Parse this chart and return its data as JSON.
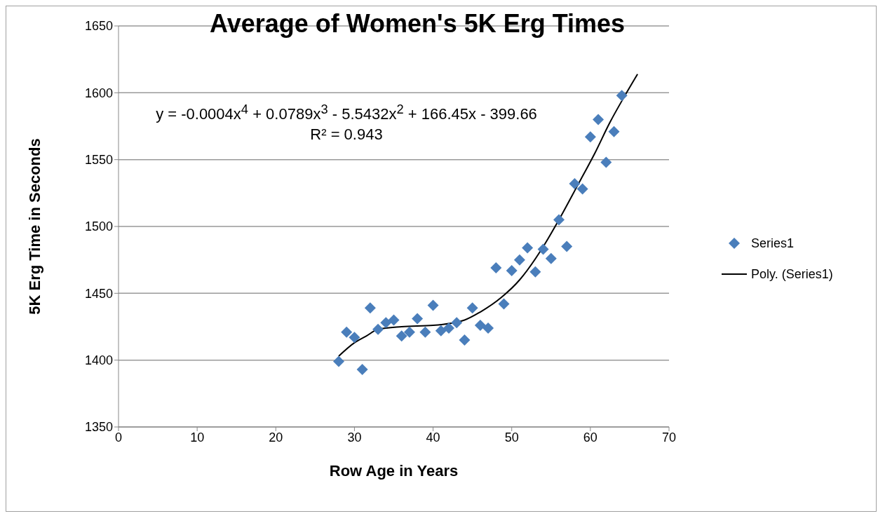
{
  "chart_data": {
    "type": "scatter",
    "title": "Average of Women's 5K Erg Times",
    "xlabel": "Row Age in Years",
    "ylabel": "5K Erg Time in Seconds",
    "annotations": [
      "y = -0.0004x$^{4}$ + 0.0789x$^{3}$ - 5.5432x$^{2}$ + 166.45x - 399.66",
      "R² = 0.943"
    ],
    "xlim": [
      0,
      70
    ],
    "xticks": [
      0,
      10,
      20,
      30,
      40,
      50,
      60,
      70
    ],
    "ylim": [
      1350,
      1650
    ],
    "yticks": [
      1350,
      1400,
      1450,
      1500,
      1550,
      1600,
      1650
    ],
    "grid": "y",
    "legend": "right",
    "series": [
      {
        "name": "Series1",
        "color": "#4a7ebb",
        "marker": "diamond",
        "x": [
          28,
          29,
          30,
          31,
          32,
          33,
          34,
          35,
          36,
          37,
          38,
          39,
          40,
          41,
          42,
          43,
          44,
          45,
          46,
          47,
          48,
          49,
          50,
          51,
          52,
          53,
          54,
          55,
          56,
          57,
          58,
          59,
          60,
          61,
          62,
          63,
          64
        ],
        "values": [
          1399,
          1421,
          1417,
          1393,
          1439,
          1423,
          1428,
          1430,
          1418,
          1421,
          1431,
          1421,
          1441,
          1422,
          1424,
          1428,
          1415,
          1439,
          1426,
          1424,
          1469,
          1442,
          1467,
          1475,
          1484,
          1466,
          1483,
          1476,
          1505,
          1485,
          1532,
          1528,
          1567,
          1580,
          1548,
          1571,
          1598
        ]
      },
      {
        "type": "line",
        "name": "Poly. (Series1)",
        "color": "#000000",
        "marker": "none",
        "x": [
          28,
          30,
          31.5,
          33,
          36,
          40,
          44,
          46,
          48.7,
          51,
          53.7,
          56.1,
          58.4,
          60.5,
          62.5,
          64.3,
          66
        ],
        "values": [
          1403,
          1413,
          1418,
          1423,
          1425,
          1426,
          1430,
          1436,
          1447,
          1460,
          1482,
          1506,
          1531,
          1554,
          1578,
          1597,
          1614
        ]
      }
    ]
  }
}
